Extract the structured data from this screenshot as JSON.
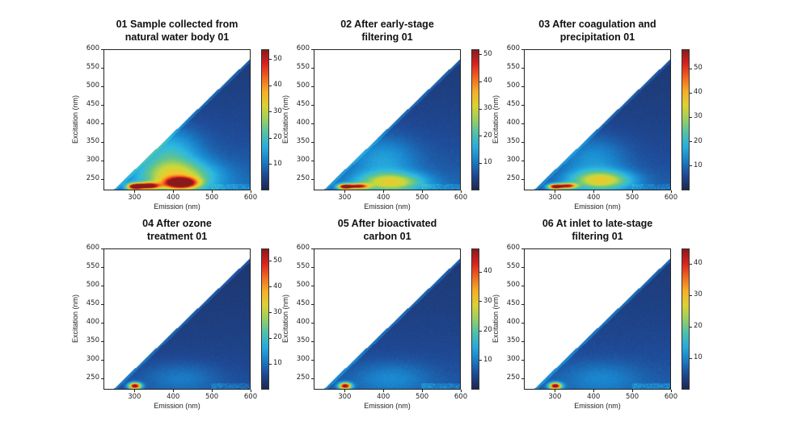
{
  "chart_data": [
    {
      "type": "heatmap",
      "title": "01 Sample collected from natural water body 01",
      "xlabel": "Emission (nm)",
      "ylabel": "Excitation (nm)",
      "xlim": [
        220,
        600
      ],
      "ylim": [
        220,
        600
      ],
      "xticks": [
        300,
        400,
        500,
        600
      ],
      "yticks": [
        250,
        300,
        350,
        400,
        450,
        500,
        550,
        600
      ],
      "colorbar": {
        "range": [
          0,
          54
        ],
        "ticks": [
          10,
          20,
          30,
          40,
          50
        ]
      },
      "background": 8,
      "peaks": [
        {
          "em": 300,
          "ex": 228,
          "value": 48,
          "sem": 14,
          "sex": 6
        },
        {
          "em": 335,
          "ex": 230,
          "value": 44,
          "sem": 20,
          "sex": 6
        },
        {
          "em": 420,
          "ex": 238,
          "value": 50,
          "sem": 28,
          "sex": 10
        },
        {
          "em": 410,
          "ex": 255,
          "value": 22,
          "sem": 70,
          "sex": 30
        },
        {
          "em": 390,
          "ex": 320,
          "value": 12,
          "sem": 55,
          "sex": 45
        }
      ]
    },
    {
      "type": "heatmap",
      "title": "02 After early-stage filtering 01",
      "xlabel": "Emission (nm)",
      "ylabel": "Excitation (nm)",
      "xlim": [
        220,
        600
      ],
      "ylim": [
        220,
        600
      ],
      "xticks": [
        300,
        400,
        500,
        600
      ],
      "yticks": [
        250,
        300,
        350,
        400,
        450,
        500,
        550,
        600
      ],
      "colorbar": {
        "range": [
          0,
          52
        ],
        "ticks": [
          10,
          20,
          30,
          40,
          50
        ]
      },
      "background": 7,
      "peaks": [
        {
          "em": 300,
          "ex": 228,
          "value": 48,
          "sem": 13,
          "sex": 5
        },
        {
          "em": 335,
          "ex": 229,
          "value": 36,
          "sem": 18,
          "sex": 5
        },
        {
          "em": 420,
          "ex": 240,
          "value": 22,
          "sem": 60,
          "sex": 18
        },
        {
          "em": 400,
          "ex": 300,
          "value": 8,
          "sem": 60,
          "sex": 45
        }
      ]
    },
    {
      "type": "heatmap",
      "title": "03 After coagulation and precipitation 01",
      "xlabel": "Emission (nm)",
      "ylabel": "Excitation (nm)",
      "xlim": [
        220,
        600
      ],
      "ylim": [
        220,
        600
      ],
      "xticks": [
        300,
        400,
        500,
        600
      ],
      "yticks": [
        250,
        300,
        350,
        400,
        450,
        500,
        550,
        600
      ],
      "colorbar": {
        "range": [
          0,
          58
        ],
        "ticks": [
          10,
          20,
          30,
          40,
          50
        ]
      },
      "background": 7,
      "peaks": [
        {
          "em": 300,
          "ex": 228,
          "value": 52,
          "sem": 13,
          "sex": 5
        },
        {
          "em": 332,
          "ex": 230,
          "value": 42,
          "sem": 16,
          "sex": 5
        },
        {
          "em": 420,
          "ex": 245,
          "value": 26,
          "sem": 55,
          "sex": 18
        },
        {
          "em": 400,
          "ex": 300,
          "value": 8,
          "sem": 60,
          "sex": 45
        }
      ]
    },
    {
      "type": "heatmap",
      "title": "04 After ozone treatment 01",
      "xlabel": "Emission (nm)",
      "ylabel": "Excitation (nm)",
      "xlim": [
        220,
        600
      ],
      "ylim": [
        220,
        600
      ],
      "xticks": [
        300,
        400,
        500,
        600
      ],
      "yticks": [
        250,
        300,
        350,
        400,
        450,
        500,
        550,
        600
      ],
      "colorbar": {
        "range": [
          0,
          55
        ],
        "ticks": [
          10,
          20,
          30,
          40,
          50
        ]
      },
      "background": 5,
      "peaks": [
        {
          "em": 300,
          "ex": 228,
          "value": 52,
          "sem": 11,
          "sex": 6
        },
        {
          "em": 420,
          "ex": 250,
          "value": 5,
          "sem": 70,
          "sex": 30
        }
      ]
    },
    {
      "type": "heatmap",
      "title": "05 After bioactivated carbon 01",
      "xlabel": "Emission (nm)",
      "ylabel": "Excitation (nm)",
      "xlim": [
        220,
        600
      ],
      "ylim": [
        220,
        600
      ],
      "xticks": [
        300,
        400,
        500,
        600
      ],
      "yticks": [
        250,
        300,
        350,
        400,
        450,
        500,
        550,
        600
      ],
      "colorbar": {
        "range": [
          0,
          48
        ],
        "ticks": [
          10,
          20,
          30,
          40
        ]
      },
      "background": 5,
      "peaks": [
        {
          "em": 300,
          "ex": 228,
          "value": 44,
          "sem": 11,
          "sex": 6
        },
        {
          "em": 420,
          "ex": 250,
          "value": 5,
          "sem": 70,
          "sex": 30
        }
      ]
    },
    {
      "type": "heatmap",
      "title": "06 At inlet to late-stage filtering 01",
      "xlabel": "Emission (nm)",
      "ylabel": "Excitation (nm)",
      "xlim": [
        220,
        600
      ],
      "ylim": [
        220,
        600
      ],
      "xticks": [
        300,
        400,
        500,
        600
      ],
      "yticks": [
        250,
        300,
        350,
        400,
        450,
        500,
        550,
        600
      ],
      "colorbar": {
        "range": [
          0,
          45
        ],
        "ticks": [
          10,
          20,
          30,
          40
        ]
      },
      "background": 5,
      "peaks": [
        {
          "em": 300,
          "ex": 228,
          "value": 42,
          "sem": 11,
          "sex": 6
        },
        {
          "em": 420,
          "ex": 250,
          "value": 4,
          "sem": 70,
          "sex": 30
        }
      ]
    }
  ],
  "titles": [
    [
      "01 Sample collected from",
      "natural water body 01"
    ],
    [
      "02 After early-stage",
      "filtering 01"
    ],
    [
      "03 After coagulation and",
      "precipitation 01"
    ],
    [
      "04 After ozone",
      "treatment 01"
    ],
    [
      "05 After bioactivated",
      "carbon 01"
    ],
    [
      "06 At inlet to late-stage",
      "filtering 01"
    ]
  ],
  "colormap": [
    "#1c2850",
    "#1f4a97",
    "#1a86cf",
    "#2cb9e2",
    "#64c58a",
    "#c9d93a",
    "#f6c52b",
    "#f47b20",
    "#e2231f",
    "#8a1a1a"
  ]
}
